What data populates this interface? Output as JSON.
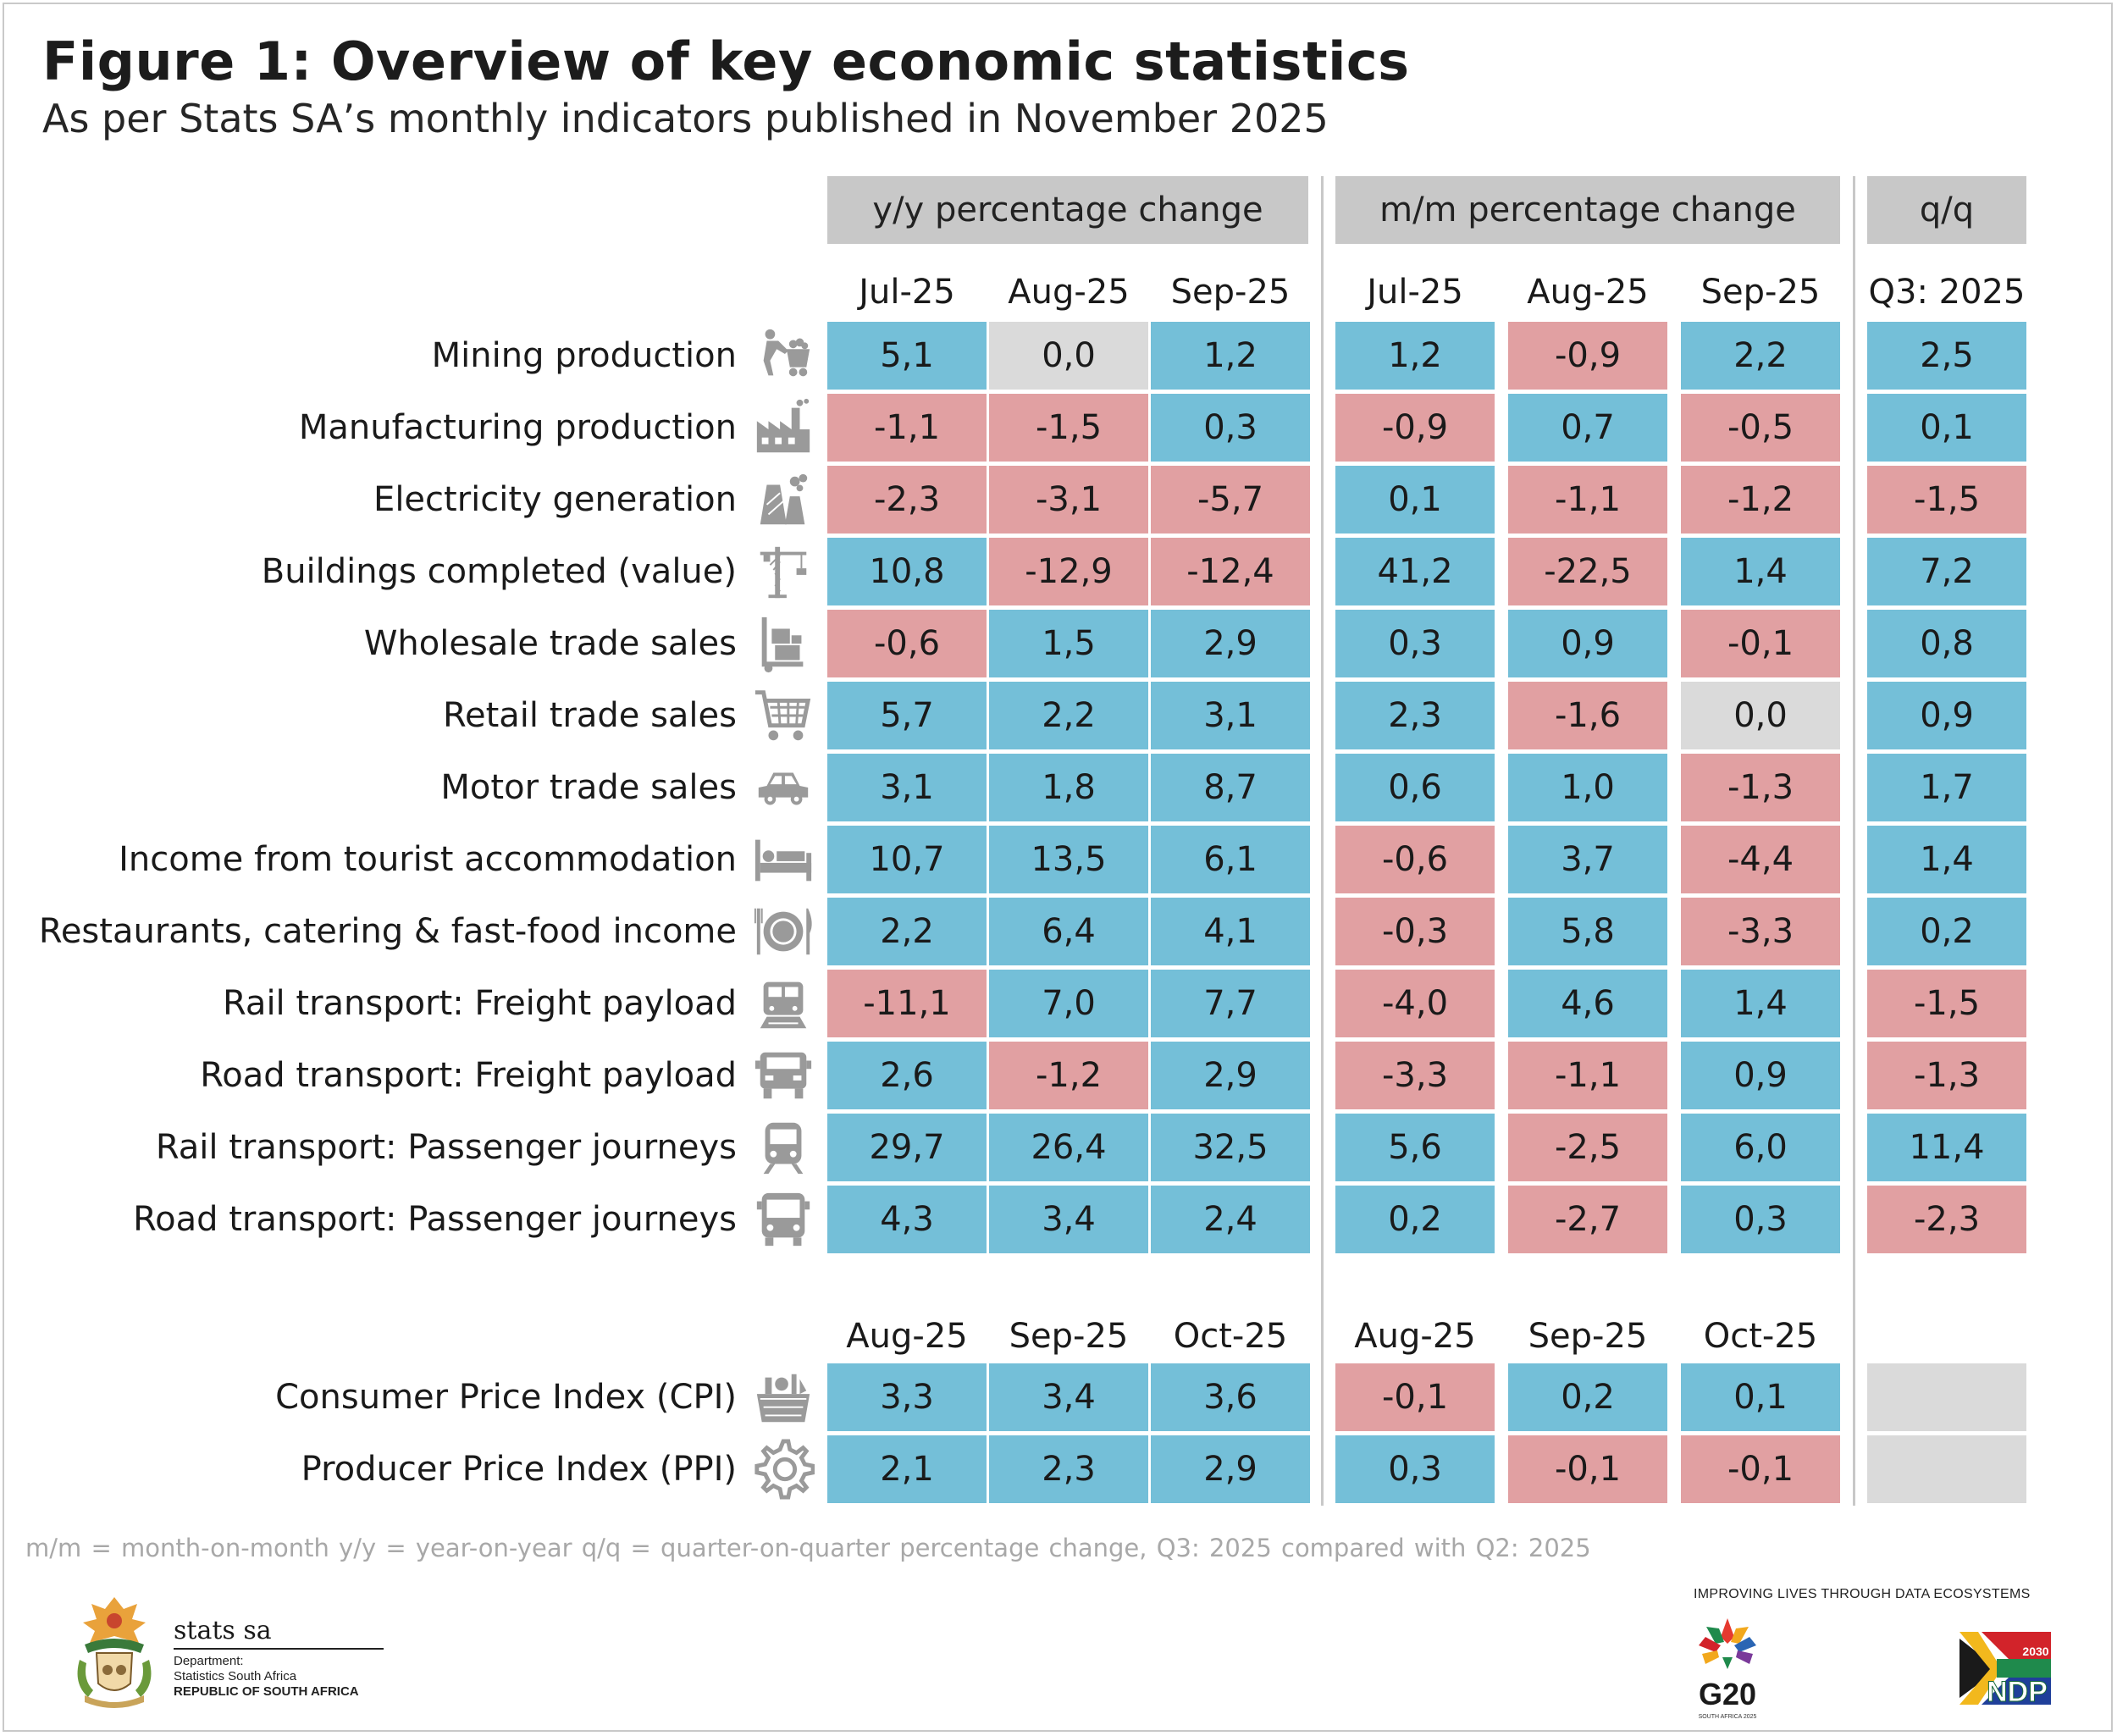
{
  "header": {
    "title": "Figure 1: Overview of key economic statistics",
    "subtitle": "As per Stats SA’s monthly indicators published in November 2025"
  },
  "colors": {
    "positive": "#74bfd8",
    "negative": "#e1a0a2",
    "zero": "#dadada",
    "header_fill": "#c8c8c8"
  },
  "chart_data": {
    "type": "table",
    "title": "Figure 1: Overview of key economic statistics",
    "subtitle": "As per Stats SA’s monthly indicators published in November 2025",
    "column_groups": [
      "y/y percentage change",
      "m/m percentage change",
      "q/q"
    ],
    "columns_monthly": [
      "Jul-25",
      "Aug-25",
      "Sep-25",
      "Jul-25",
      "Aug-25",
      "Sep-25",
      "Q3: 2025"
    ],
    "rows_monthly": [
      {
        "label": "Mining production",
        "icon": "miner-cart-icon",
        "values": [
          "5,1",
          "0,0",
          "1,2",
          "1,2",
          "-0,9",
          "2,2",
          "2,5"
        ]
      },
      {
        "label": "Manufacturing production",
        "icon": "factory-icon",
        "values": [
          "-1,1",
          "-1,5",
          "0,3",
          "-0,9",
          "0,7",
          "-0,5",
          "0,1"
        ]
      },
      {
        "label": "Electricity generation",
        "icon": "power-station-icon",
        "values": [
          "-2,3",
          "-3,1",
          "-5,7",
          "0,1",
          "-1,1",
          "-1,2",
          "-1,5"
        ]
      },
      {
        "label": "Buildings completed (value)",
        "icon": "crane-icon",
        "values": [
          "10,8",
          "-12,9",
          "-12,4",
          "41,2",
          "-22,5",
          "1,4",
          "7,2"
        ]
      },
      {
        "label": "Wholesale trade sales",
        "icon": "hand-truck-icon",
        "values": [
          "-0,6",
          "1,5",
          "2,9",
          "0,3",
          "0,9",
          "-0,1",
          "0,8"
        ]
      },
      {
        "label": "Retail trade sales",
        "icon": "shopping-cart-icon",
        "values": [
          "5,7",
          "2,2",
          "3,1",
          "2,3",
          "-1,6",
          "0,0",
          "0,9"
        ]
      },
      {
        "label": "Motor trade sales",
        "icon": "car-icon",
        "values": [
          "3,1",
          "1,8",
          "8,7",
          "0,6",
          "1,0",
          "-1,3",
          "1,7"
        ]
      },
      {
        "label": "Income from tourist accommodation",
        "icon": "bed-icon",
        "values": [
          "10,7",
          "13,5",
          "6,1",
          "-0,6",
          "3,7",
          "-4,4",
          "1,4"
        ]
      },
      {
        "label": "Restaurants, catering & fast-food income",
        "icon": "plate-cutlery-icon",
        "values": [
          "2,2",
          "6,4",
          "4,1",
          "-0,3",
          "5,8",
          "-3,3",
          "0,2"
        ]
      },
      {
        "label": "Rail transport: Freight payload",
        "icon": "freight-train-icon",
        "values": [
          "-11,1",
          "7,0",
          "7,7",
          "-4,0",
          "4,6",
          "1,4",
          "-1,5"
        ]
      },
      {
        "label": "Road transport: Freight payload",
        "icon": "truck-icon",
        "values": [
          "2,6",
          "-1,2",
          "2,9",
          "-3,3",
          "-1,1",
          "0,9",
          "-1,3"
        ]
      },
      {
        "label": "Rail transport: Passenger journeys",
        "icon": "passenger-train-icon",
        "values": [
          "29,7",
          "26,4",
          "32,5",
          "5,6",
          "-2,5",
          "6,0",
          "11,4"
        ]
      },
      {
        "label": "Road transport: Passenger journeys",
        "icon": "bus-icon",
        "values": [
          "4,3",
          "3,4",
          "2,4",
          "0,2",
          "-2,7",
          "0,3",
          "-2,3"
        ]
      }
    ],
    "columns_prices": [
      "Aug-25",
      "Sep-25",
      "Oct-25",
      "Aug-25",
      "Sep-25",
      "Oct-25"
    ],
    "rows_prices": [
      {
        "label": "Consumer Price Index (CPI)",
        "icon": "grocery-basket-icon",
        "values": [
          "3,3",
          "3,4",
          "3,6",
          "-0,1",
          "0,2",
          "0,1",
          ""
        ]
      },
      {
        "label": "Producer Price Index (PPI)",
        "icon": "gear-icon",
        "values": [
          "2,1",
          "2,3",
          "2,9",
          "0,3",
          "-0,1",
          "-0,1",
          ""
        ]
      }
    ]
  },
  "footer": {
    "note": "m/m = month-on-month    y/y = year-on-year    q/q = quarter-on-quarter percentage change, Q3: 2025 compared with Q2: 2025",
    "tagline": "IMPROVING LIVES THROUGH DATA ECOSYSTEMS",
    "brand_name": "stats sa",
    "brand_line1": "Department:",
    "brand_line2": "Statistics South Africa",
    "brand_line3": "REPUBLIC OF SOUTH AFRICA",
    "g20_label": "G20",
    "g20_sub": "SOUTH AFRICA 2025",
    "ndp_label": "NDP",
    "ndp_year": "2030"
  }
}
